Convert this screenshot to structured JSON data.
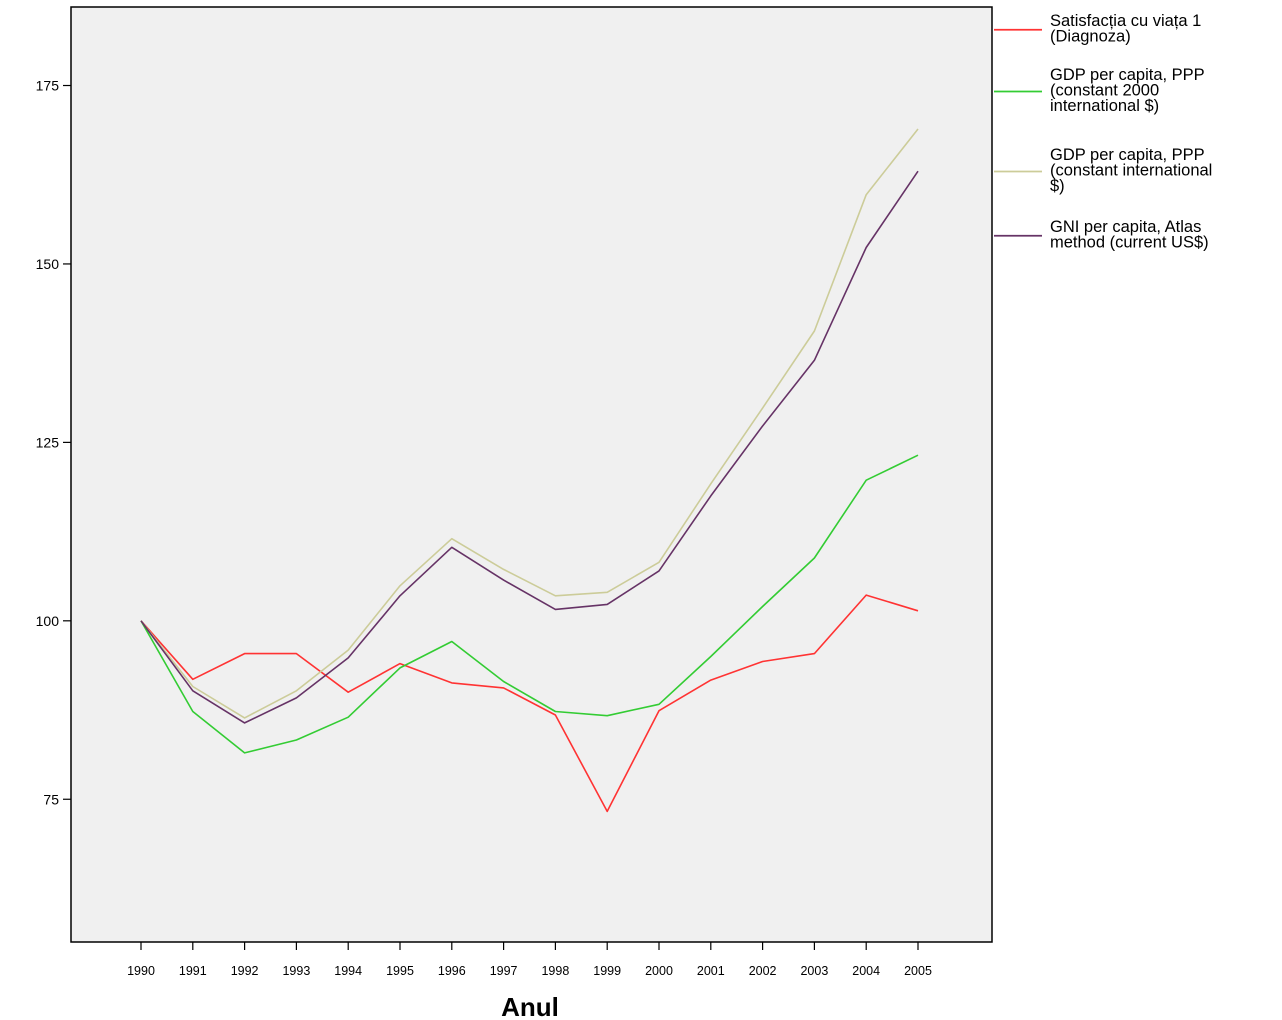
{
  "chart_data": {
    "type": "line",
    "xlabel": "Anul",
    "ylabel": "",
    "x": [
      "1990",
      "1991",
      "1992",
      "1993",
      "1994",
      "1995",
      "1996",
      "1997",
      "1998",
      "1999",
      "2000",
      "2001",
      "2002",
      "2003",
      "2004",
      "2005"
    ],
    "ylim": [
      55,
      186
    ],
    "yticks": [
      75,
      100,
      125,
      150,
      175
    ],
    "grid": false,
    "legend_position": "right",
    "background_color": "#f0f0f0",
    "series": [
      {
        "name": [
          "Satisfacția cu viața 1",
          "(Diagnoza)"
        ],
        "color": "#ff3333",
        "values": [
          100,
          91.8,
          95.4,
          95.4,
          90.0,
          94.0,
          91.3,
          90.6,
          86.8,
          73.3,
          87.4,
          91.7,
          94.3,
          95.4,
          103.6,
          101.4
        ]
      },
      {
        "name": [
          "GDP per capita, PPP",
          "(constant 2000",
          "international $)"
        ],
        "color": "#33cc33",
        "values": [
          100,
          87.3,
          81.5,
          83.3,
          86.5,
          93.4,
          97.1,
          91.5,
          87.3,
          86.7,
          88.3,
          95.0,
          102.0,
          108.8,
          119.7,
          123.2
        ]
      },
      {
        "name": [
          "GDP per capita, PPP",
          "(constant international",
          "$)"
        ],
        "color": "#cccc99",
        "values": [
          100,
          90.8,
          86.4,
          90.2,
          95.9,
          104.9,
          111.5,
          107.2,
          103.5,
          104.0,
          108.2,
          119.2,
          129.8,
          140.6,
          159.7,
          168.9
        ]
      },
      {
        "name": [
          "GNI per capita, Atlas",
          "method (current US$)"
        ],
        "color": "#663366",
        "values": [
          100,
          90.2,
          85.7,
          89.2,
          94.8,
          103.5,
          110.3,
          105.7,
          101.6,
          102.3,
          107.0,
          117.5,
          127.3,
          136.5,
          152.3,
          163.0
        ]
      }
    ]
  }
}
